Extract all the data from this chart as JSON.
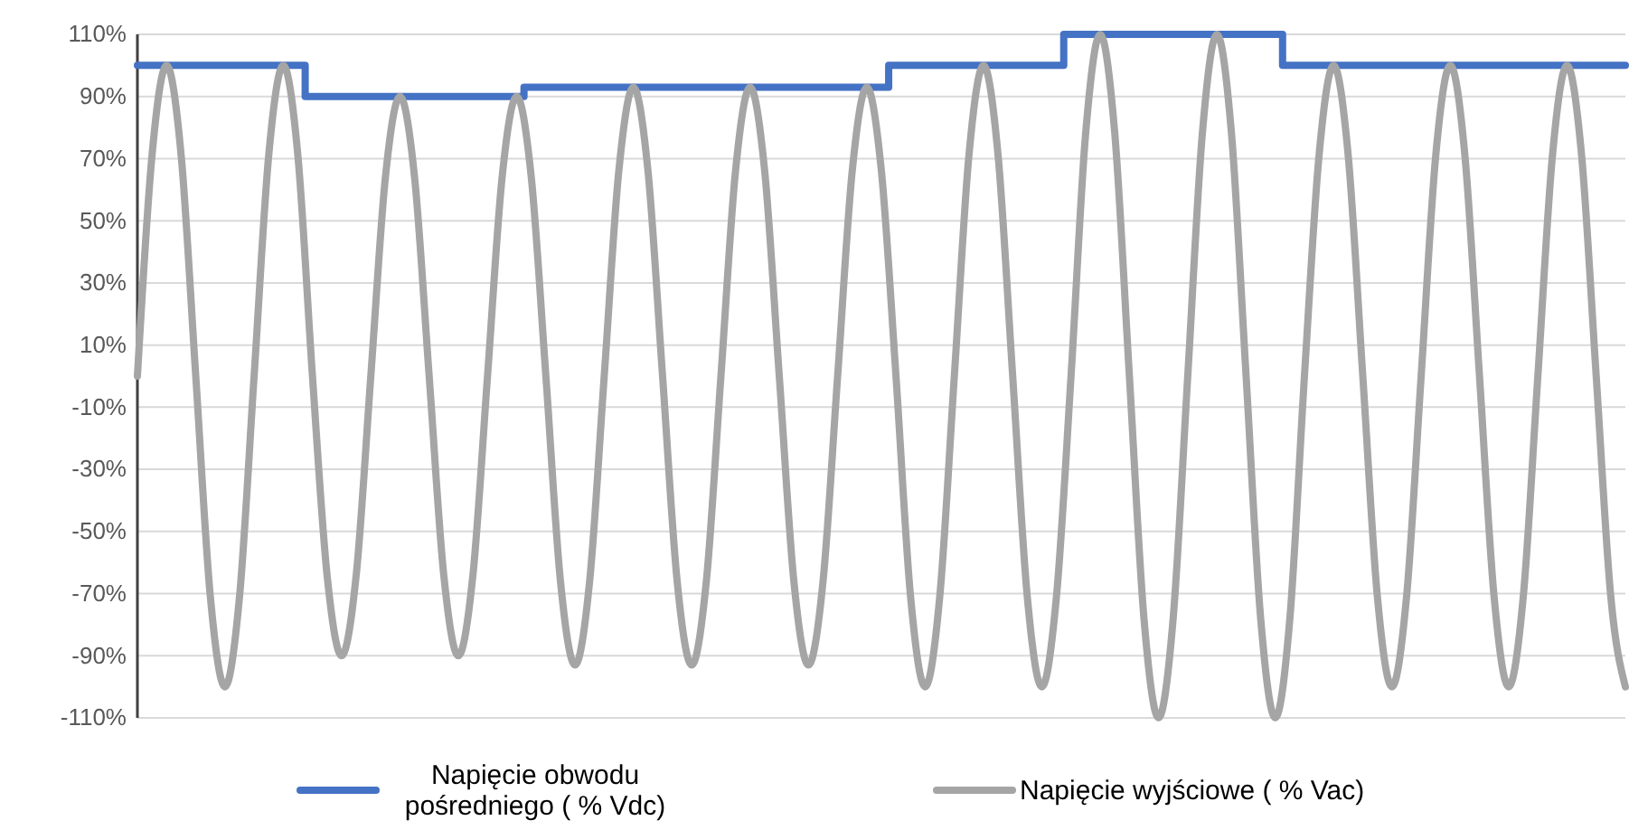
{
  "chart_data": {
    "type": "line",
    "categories": [
      null,
      null,
      null,
      null,
      null,
      null,
      null,
      null,
      null,
      null,
      null,
      null,
      null,
      null,
      null,
      null,
      null,
      null,
      null,
      null,
      null,
      null,
      null,
      null,
      null,
      null,
      null,
      null,
      null,
      null,
      null,
      null,
      null,
      null,
      null,
      null,
      null,
      null,
      null,
      null,
      null,
      null,
      null,
      null,
      null,
      null,
      null,
      null,
      null,
      null,
      null,
      null,
      null,
      null,
      null,
      null,
      null,
      null,
      null,
      null,
      null,
      null,
      null,
      null,
      null,
      null,
      null,
      null,
      null,
      null,
      null,
      null,
      null,
      null,
      null,
      null,
      null,
      null,
      null,
      null,
      null,
      null,
      null,
      null,
      null,
      null,
      null,
      null,
      null,
      null,
      null,
      null,
      null,
      null,
      null,
      null,
      null,
      null,
      null,
      null,
      null,
      null,
      null
    ],
    "series": [
      {
        "name": "Napięcie obwodu pośredniego ( % Vdc)",
        "type": "step",
        "color": "#4472c4",
        "values": [
          100,
          100,
          100,
          100,
          100,
          100,
          100,
          100,
          100,
          100,
          100,
          100,
          90,
          90,
          90,
          90,
          90,
          90,
          90,
          90,
          90,
          90,
          90,
          90,
          90,
          90,
          90,
          93,
          93,
          93,
          93,
          93,
          93,
          93,
          93,
          93,
          93,
          93,
          93,
          93,
          93,
          93,
          93,
          93,
          93,
          93,
          93,
          93,
          93,
          93,
          93,
          93,
          100,
          100,
          100,
          100,
          100,
          100,
          100,
          100,
          100,
          100,
          100,
          100,
          110,
          110,
          110,
          110,
          110,
          110,
          110,
          110,
          110,
          110,
          110,
          110,
          110,
          110,
          110,
          100,
          100,
          100,
          100,
          100,
          100,
          100,
          100,
          100,
          100,
          100,
          100,
          100,
          100,
          100,
          100,
          100,
          100,
          100,
          100,
          100,
          100,
          100,
          100
        ]
      },
      {
        "name": "Napięcie wyjściowe ( % Vac)",
        "type": "line",
        "color": "#a5a5a5",
        "values": [
          0,
          71,
          100,
          71,
          0,
          -71,
          -100,
          -71,
          0,
          71,
          100,
          71,
          0,
          -64,
          -90,
          -64,
          0,
          64,
          90,
          64,
          0,
          -64,
          -90,
          -64,
          0,
          64,
          90,
          64,
          0,
          -66,
          -93,
          -66,
          0,
          66,
          93,
          66,
          0,
          -66,
          -93,
          -66,
          0,
          66,
          93,
          66,
          0,
          -66,
          -93,
          -66,
          0,
          66,
          93,
          66,
          0,
          -71,
          -100,
          -71,
          0,
          71,
          100,
          71,
          0,
          -71,
          -100,
          -71,
          0,
          78,
          110,
          78,
          0,
          -78,
          -110,
          -78,
          0,
          78,
          110,
          78,
          0,
          -78,
          -110,
          -78,
          0,
          71,
          100,
          71,
          0,
          -71,
          -100,
          -71,
          0,
          71,
          100,
          71,
          0,
          -71,
          -100,
          -71,
          0,
          71,
          100,
          71,
          0,
          -71,
          -100
        ]
      }
    ],
    "ylim": [
      -110,
      110
    ],
    "yticks": [
      {
        "value": -110,
        "label": "-110%"
      },
      {
        "value": -90,
        "label": "-90%"
      },
      {
        "value": -70,
        "label": "-70%"
      },
      {
        "value": -50,
        "label": "-50%"
      },
      {
        "value": -30,
        "label": "-30%"
      },
      {
        "value": -10,
        "label": "-10%"
      },
      {
        "value": 10,
        "label": "10%"
      },
      {
        "value": 30,
        "label": "30%"
      },
      {
        "value": 50,
        "label": "50%"
      },
      {
        "value": 70,
        "label": "70%"
      },
      {
        "value": 90,
        "label": "90%"
      },
      {
        "value": 110,
        "label": "110%"
      }
    ],
    "grid": "y",
    "legend": "bottom",
    "tick_labels": "y"
  }
}
